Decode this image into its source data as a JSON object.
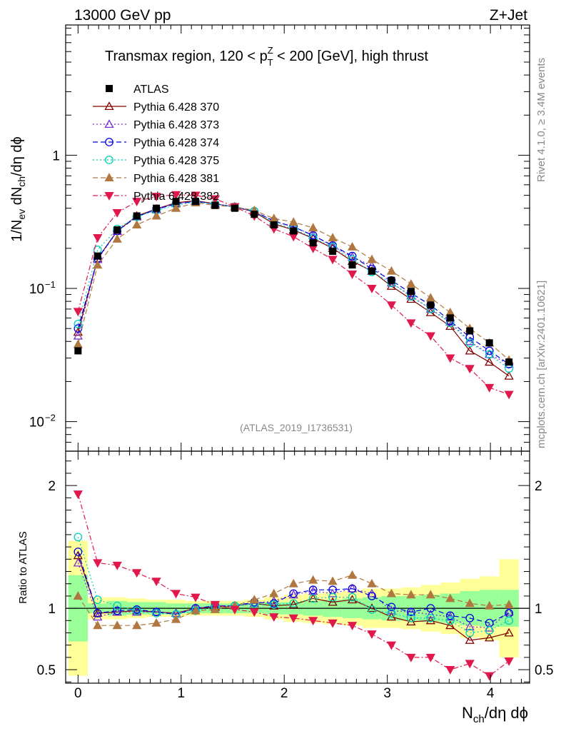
{
  "header": {
    "left": "13000 GeV pp",
    "right": "Z+Jet"
  },
  "side_labels": {
    "rivet": "Rivet 4.1.0, ≥ 3.4M events",
    "mcplots": "mcplots.cern.ch [arXiv:2401.10621]"
  },
  "chart_data": {
    "type": "line",
    "title_prefix": "Transmax region, 120 < p",
    "title_sup": "Z",
    "title_sub": "T",
    "title_suffix": " < 200 [GeV], high thrust",
    "analysis_tag": "(ATLAS_2019_I1736531)",
    "xlabel": {
      "main": "N",
      "sub": "ch",
      "rest": "/dη dϕ"
    },
    "ylabel": {
      "p1": "1/N",
      "s1": "ev",
      "p2": " dN",
      "s2": "ch",
      "p3": "/dη dϕ"
    },
    "ratio_ylabel": "Ratio to ATLAS",
    "xlim": [
      -0.12,
      4.38
    ],
    "ylim_main": [
      0.006,
      9.5
    ],
    "ylim_ratio": [
      0.39,
      2.28
    ],
    "x_ticks": [
      "0",
      "1",
      "2",
      "3",
      "4"
    ],
    "y_ticks_main": [
      {
        "value": 1,
        "base": "1",
        "exp": ""
      },
      {
        "value": 0.1,
        "base": "10",
        "exp": "−1"
      },
      {
        "value": 0.01,
        "base": "10",
        "exp": "−2"
      }
    ],
    "y_ticks_ratio": [
      "0.5",
      "1",
      "2"
    ],
    "x": [
      0,
      0.19,
      0.38,
      0.57,
      0.76,
      0.95,
      1.14,
      1.33,
      1.52,
      1.71,
      1.9,
      2.09,
      2.28,
      2.47,
      2.66,
      2.85,
      3.04,
      3.23,
      3.42,
      3.61,
      3.8,
      3.99,
      4.18
    ],
    "data": {
      "name": "ATLAS",
      "values": [
        0.034,
        0.175,
        0.275,
        0.35,
        0.4,
        0.45,
        0.45,
        0.42,
        0.4,
        0.36,
        0.3,
        0.27,
        0.22,
        0.19,
        0.15,
        0.135,
        0.115,
        0.095,
        0.075,
        0.06,
        0.048,
        0.039,
        0.028
      ]
    },
    "band_inner": [
      0.27,
      0.04,
      0.06,
      0.05,
      0.05,
      0.04,
      0.04,
      0.04,
      0.04,
      0.04,
      0.05,
      0.05,
      0.06,
      0.07,
      0.08,
      0.09,
      0.1,
      0.1,
      0.11,
      0.12,
      0.14,
      0.15,
      0.15
    ],
    "band_outer": [
      0.55,
      0.09,
      0.09,
      0.08,
      0.07,
      0.07,
      0.06,
      0.06,
      0.06,
      0.07,
      0.09,
      0.11,
      0.12,
      0.13,
      0.14,
      0.16,
      0.16,
      0.17,
      0.19,
      0.21,
      0.24,
      0.26,
      0.4
    ],
    "series": [
      {
        "name": "Pythia 6.428 370",
        "color": "#800000",
        "marker": "tri-open",
        "dash": "",
        "values": [
          0.047,
          0.168,
          0.27,
          0.35,
          0.395,
          0.44,
          0.455,
          0.432,
          0.41,
          0.375,
          0.305,
          0.275,
          0.237,
          0.2,
          0.16,
          0.135,
          0.104,
          0.083,
          0.066,
          0.052,
          0.034,
          0.028,
          0.022
        ]
      },
      {
        "name": "Pythia 6.428 373",
        "color": "#7b2fd0",
        "marker": "tri-open",
        "dash": "2,3",
        "values": [
          0.044,
          0.165,
          0.268,
          0.345,
          0.39,
          0.435,
          0.45,
          0.43,
          0.408,
          0.375,
          0.32,
          0.29,
          0.25,
          0.208,
          0.172,
          0.148,
          0.11,
          0.088,
          0.07,
          0.056,
          0.04,
          0.032,
          0.027
        ]
      },
      {
        "name": "Pythia 6.428 374",
        "color": "#0000e0",
        "marker": "circle-open",
        "dash": "7,4",
        "values": [
          0.05,
          0.167,
          0.27,
          0.345,
          0.395,
          0.43,
          0.45,
          0.43,
          0.41,
          0.38,
          0.32,
          0.29,
          0.25,
          0.21,
          0.175,
          0.14,
          0.115,
          0.092,
          0.075,
          0.057,
          0.043,
          0.034,
          0.027
        ]
      },
      {
        "name": "Pythia 6.428 375",
        "color": "#00d0b8",
        "marker": "circle-open",
        "dash": "2,3",
        "values": [
          0.054,
          0.195,
          0.28,
          0.345,
          0.385,
          0.425,
          0.445,
          0.43,
          0.41,
          0.38,
          0.31,
          0.28,
          0.24,
          0.205,
          0.165,
          0.133,
          0.11,
          0.087,
          0.07,
          0.055,
          0.039,
          0.032,
          0.025
        ]
      },
      {
        "name": "Pythia 6.428 381",
        "color": "#b07840",
        "marker": "tri-filled",
        "dash": "7,4",
        "values": [
          0.038,
          0.15,
          0.235,
          0.3,
          0.35,
          0.4,
          0.44,
          0.42,
          0.41,
          0.385,
          0.335,
          0.315,
          0.285,
          0.24,
          0.205,
          0.165,
          0.135,
          0.108,
          0.085,
          0.066,
          0.05,
          0.039,
          0.029
        ]
      },
      {
        "name": "Pythia 6.428 382",
        "color": "#e0184c",
        "marker": "tri-down-filled",
        "dash": "7,3,2,3",
        "values": [
          0.067,
          0.24,
          0.37,
          0.45,
          0.49,
          0.505,
          0.5,
          0.47,
          0.41,
          0.35,
          0.28,
          0.245,
          0.2,
          0.165,
          0.128,
          0.1,
          0.075,
          0.055,
          0.044,
          0.03,
          0.025,
          0.018,
          0.016
        ]
      }
    ],
    "ratios": [
      [
        1.43,
        0.96,
        0.97,
        0.98,
        0.97,
        0.96,
        1.0,
        1.01,
        1.02,
        1.04,
        1.02,
        1.03,
        1.08,
        1.05,
        1.07,
        1.0,
        0.93,
        0.89,
        0.9,
        0.86,
        0.74,
        0.76,
        0.8
      ],
      [
        1.37,
        0.93,
        0.97,
        0.97,
        0.97,
        0.96,
        1.0,
        1.02,
        1.02,
        1.04,
        1.06,
        1.11,
        1.14,
        1.12,
        1.16,
        1.12,
        0.98,
        0.97,
        0.95,
        0.93,
        0.85,
        0.84,
        0.97
      ],
      [
        1.46,
        0.96,
        0.98,
        0.99,
        0.97,
        0.95,
        1.0,
        1.02,
        1.02,
        1.05,
        1.04,
        1.12,
        1.15,
        1.15,
        1.16,
        1.1,
        1.01,
        0.97,
        1.0,
        0.94,
        0.92,
        0.88,
        0.96
      ],
      [
        1.58,
        1.07,
        1.02,
        0.98,
        0.96,
        0.95,
        0.98,
        1.01,
        1.02,
        1.04,
        1.03,
        1.04,
        1.08,
        1.09,
        1.09,
        0.99,
        0.96,
        0.92,
        0.92,
        0.9,
        0.8,
        0.82,
        0.9
      ],
      [
        1.1,
        0.86,
        0.86,
        0.86,
        0.88,
        0.91,
        0.98,
        0.99,
        1.02,
        1.07,
        1.12,
        1.2,
        1.23,
        1.22,
        1.27,
        1.2,
        1.12,
        1.11,
        1.11,
        1.08,
        1.04,
        1.02,
        1.03
      ],
      [
        1.93,
        1.37,
        1.35,
        1.29,
        1.22,
        1.12,
        1.09,
        1.03,
        0.99,
        0.97,
        0.93,
        0.92,
        0.9,
        0.88,
        0.86,
        0.79,
        0.7,
        0.6,
        0.6,
        0.5,
        0.55,
        0.45,
        0.57
      ]
    ]
  }
}
